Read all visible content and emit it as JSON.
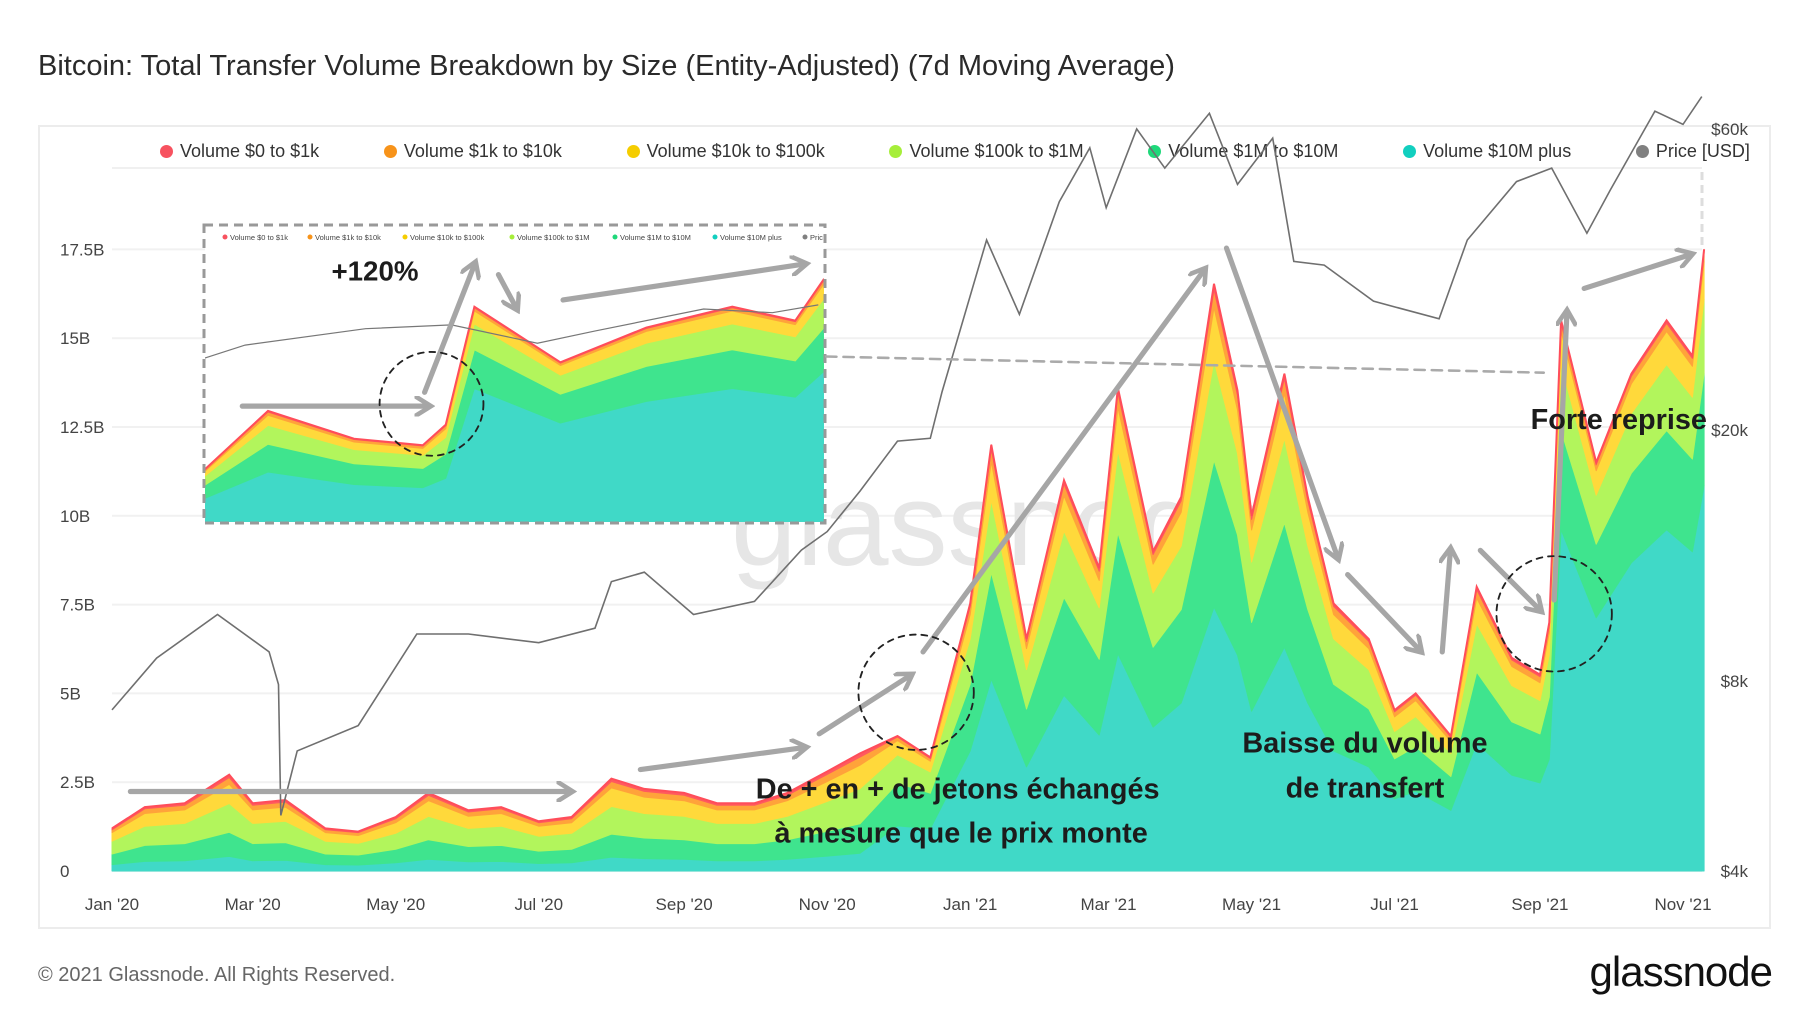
{
  "title": "Bitcoin: Total Transfer Volume Breakdown by Size (Entity-Adjusted) (7d Moving Average)",
  "footer": "© 2021 Glassnode. All Rights Reserved.",
  "logo": "glassnode",
  "watermark": "glassnode",
  "legend": [
    {
      "label": "Volume $0 to $1k",
      "color": "#f7525f"
    },
    {
      "label": "Volume $1k to $10k",
      "color": "#f7931a"
    },
    {
      "label": "Volume $10k to $100k",
      "color": "#f5cd00"
    },
    {
      "label": "Volume $100k to $1M",
      "color": "#a6ee3a"
    },
    {
      "label": "Volume $1M to $10M",
      "color": "#1fd87a"
    },
    {
      "label": "Volume $10M plus",
      "color": "#12cfbf"
    },
    {
      "label": "Price [USD]",
      "color": "#808080"
    }
  ],
  "inset_legend": [
    "Volume $0 to $1k",
    "Volume $1k to $10k",
    "Volume $10k to $100k",
    "Volume $100k to $1M",
    "Volume $1M to $10M",
    "Volume $10M plus",
    "Pric"
  ],
  "annotations": {
    "inset_pct": "+120%",
    "rise_line1": "De + en + de jetons échangés",
    "rise_line2": "à mesure que le prix monte",
    "drop_line1": "Baisse du volume",
    "drop_line2": "de transfert",
    "recovery": "Forte reprise"
  },
  "chart_data": {
    "type": "area",
    "stacked": true,
    "title": "Bitcoin: Total Transfer Volume Breakdown by Size (Entity-Adjusted) (7d Moving Average)",
    "x_ticks": [
      "Jan '20",
      "Mar '20",
      "May '20",
      "Jul '20",
      "Sep '20",
      "Nov '20",
      "Jan '21",
      "Mar '21",
      "May '21",
      "Jul '21",
      "Sep '21",
      "Nov '21"
    ],
    "x_tick_dates": [
      "2020-01-01",
      "2020-03-01",
      "2020-05-01",
      "2020-07-01",
      "2020-09-01",
      "2020-11-01",
      "2021-01-01",
      "2021-03-01",
      "2021-05-01",
      "2021-07-01",
      "2021-09-01",
      "2021-11-01"
    ],
    "y_left": {
      "ticks": [
        "0",
        "2.5B",
        "5B",
        "7.5B",
        "10B",
        "12.5B",
        "15B",
        "17.5B"
      ],
      "tick_values": [
        0,
        2.5,
        5,
        7.5,
        10,
        12.5,
        15,
        17.5
      ],
      "unit": "billion USD",
      "range": [
        0,
        18
      ]
    },
    "y_right": {
      "scale": "log",
      "ticks": [
        "$4k",
        "$8k",
        "$20k",
        "$60k"
      ],
      "tick_values": [
        4000,
        8000,
        20000,
        60000
      ]
    },
    "grid": true,
    "legend_position": "top",
    "dates": [
      "2020-01-01",
      "2020-01-15",
      "2020-02-01",
      "2020-02-20",
      "2020-03-01",
      "2020-03-15",
      "2020-04-01",
      "2020-04-15",
      "2020-05-01",
      "2020-05-15",
      "2020-06-01",
      "2020-06-15",
      "2020-07-01",
      "2020-07-15",
      "2020-08-01",
      "2020-08-15",
      "2020-09-01",
      "2020-09-15",
      "2020-10-01",
      "2020-10-15",
      "2020-11-01",
      "2020-11-15",
      "2020-12-01",
      "2020-12-15",
      "2021-01-01",
      "2021-01-10",
      "2021-01-25",
      "2021-02-10",
      "2021-02-25",
      "2021-03-05",
      "2021-03-20",
      "2021-04-01",
      "2021-04-15",
      "2021-04-25",
      "2021-05-01",
      "2021-05-15",
      "2021-05-25",
      "2021-06-05",
      "2021-06-20",
      "2021-07-01",
      "2021-07-10",
      "2021-07-25",
      "2021-08-05",
      "2021-08-20",
      "2021-09-01",
      "2021-09-05",
      "2021-09-10",
      "2021-09-25",
      "2021-10-10",
      "2021-10-25",
      "2021-11-05",
      "2021-11-10"
    ],
    "series": [
      {
        "name": "Volume $10M plus",
        "color": "#40d9c7",
        "values": [
          0.18,
          0.27,
          0.29,
          0.41,
          0.29,
          0.3,
          0.18,
          0.17,
          0.23,
          0.33,
          0.26,
          0.27,
          0.21,
          0.23,
          0.39,
          0.35,
          0.33,
          0.29,
          0.29,
          0.33,
          0.42,
          0.5,
          1.27,
          1.19,
          3.38,
          5.4,
          2.93,
          4.95,
          3.83,
          6.12,
          4.05,
          4.73,
          7.43,
          6.08,
          4.5,
          6.3,
          4.73,
          3.38,
          2.93,
          2.03,
          2.25,
          1.71,
          3.6,
          2.7,
          2.48,
          3.15,
          9.61,
          7.13,
          8.68,
          9.61,
          8.99,
          10.85
        ]
      },
      {
        "name": "Volume $1M to $10M",
        "color": "#3fe48e",
        "values": [
          0.3,
          0.45,
          0.48,
          0.68,
          0.48,
          0.5,
          0.3,
          0.28,
          0.38,
          0.55,
          0.43,
          0.45,
          0.35,
          0.38,
          0.65,
          0.58,
          0.55,
          0.48,
          0.48,
          0.55,
          0.7,
          0.83,
          1.2,
          1.0,
          1.88,
          3.0,
          1.63,
          2.75,
          2.13,
          3.4,
          2.25,
          2.63,
          4.13,
          3.38,
          2.5,
          3.5,
          2.63,
          1.88,
          1.63,
          1.13,
          1.25,
          0.95,
          2.0,
          1.5,
          1.38,
          1.75,
          2.79,
          2.07,
          2.52,
          2.79,
          2.61,
          3.15
        ]
      },
      {
        "name": "Volume $100k to $1M",
        "color": "#b2f55c",
        "values": [
          0.36,
          0.54,
          0.57,
          0.81,
          0.57,
          0.6,
          0.36,
          0.33,
          0.45,
          0.66,
          0.51,
          0.54,
          0.42,
          0.45,
          0.78,
          0.69,
          0.66,
          0.57,
          0.57,
          0.66,
          0.84,
          0.99,
          0.8,
          0.6,
          1.28,
          2.04,
          1.11,
          1.87,
          1.45,
          2.31,
          1.53,
          1.79,
          2.81,
          2.3,
          1.7,
          2.38,
          1.79,
          1.28,
          1.11,
          0.77,
          0.85,
          0.65,
          1.36,
          1.02,
          0.94,
          1.19,
          1.86,
          1.38,
          1.68,
          1.86,
          1.74,
          2.1
        ]
      },
      {
        "name": "Volume $10k to $100k",
        "color": "#ffd93b",
        "values": [
          0.24,
          0.36,
          0.38,
          0.54,
          0.38,
          0.4,
          0.24,
          0.22,
          0.3,
          0.44,
          0.34,
          0.36,
          0.28,
          0.3,
          0.52,
          0.46,
          0.44,
          0.38,
          0.38,
          0.44,
          0.56,
          0.66,
          0.4,
          0.3,
          0.68,
          1.08,
          0.59,
          0.99,
          0.77,
          1.22,
          0.81,
          0.95,
          1.49,
          1.22,
          0.9,
          1.26,
          0.95,
          0.68,
          0.59,
          0.41,
          0.45,
          0.34,
          0.72,
          0.54,
          0.5,
          0.63,
          0.93,
          0.69,
          0.84,
          0.93,
          0.87,
          1.05
        ]
      },
      {
        "name": "Volume $1k to $10k",
        "color": "#ffa33a",
        "values": [
          0.08,
          0.13,
          0.13,
          0.19,
          0.13,
          0.14,
          0.08,
          0.08,
          0.11,
          0.15,
          0.12,
          0.13,
          0.1,
          0.11,
          0.18,
          0.16,
          0.15,
          0.13,
          0.13,
          0.15,
          0.2,
          0.23,
          0.1,
          0.08,
          0.23,
          0.36,
          0.2,
          0.33,
          0.26,
          0.41,
          0.27,
          0.32,
          0.5,
          0.41,
          0.3,
          0.42,
          0.32,
          0.23,
          0.2,
          0.14,
          0.15,
          0.11,
          0.24,
          0.18,
          0.17,
          0.21,
          0.23,
          0.17,
          0.21,
          0.23,
          0.22,
          0.26
        ]
      },
      {
        "name": "Volume $0 to $1k",
        "color": "#ff5a5f",
        "values": [
          0.04,
          0.05,
          0.06,
          0.08,
          0.06,
          0.06,
          0.04,
          0.03,
          0.05,
          0.07,
          0.05,
          0.05,
          0.04,
          0.05,
          0.08,
          0.07,
          0.07,
          0.06,
          0.06,
          0.07,
          0.08,
          0.1,
          0.03,
          0.03,
          0.08,
          0.12,
          0.07,
          0.11,
          0.09,
          0.14,
          0.09,
          0.11,
          0.17,
          0.14,
          0.1,
          0.14,
          0.11,
          0.08,
          0.07,
          0.05,
          0.05,
          0.04,
          0.08,
          0.06,
          0.06,
          0.07,
          0.08,
          0.06,
          0.07,
          0.08,
          0.07,
          0.09
        ]
      }
    ],
    "price": {
      "name": "Price [USD]",
      "color": "#6f6f6f",
      "dates": [
        "2020-01-01",
        "2020-01-20",
        "2020-02-15",
        "2020-03-08",
        "2020-03-12",
        "2020-03-13",
        "2020-03-20",
        "2020-04-15",
        "2020-05-10",
        "2020-06-01",
        "2020-07-01",
        "2020-07-25",
        "2020-08-01",
        "2020-08-15",
        "2020-09-05",
        "2020-10-01",
        "2020-10-21",
        "2020-11-01",
        "2020-11-15",
        "2020-12-01",
        "2020-12-15",
        "2020-12-20",
        "2021-01-08",
        "2021-01-22",
        "2021-02-08",
        "2021-02-21",
        "2021-02-28",
        "2021-03-13",
        "2021-03-25",
        "2021-04-13",
        "2021-04-25",
        "2021-05-10",
        "2021-05-19",
        "2021-06-01",
        "2021-06-22",
        "2021-07-20",
        "2021-08-01",
        "2021-08-22",
        "2021-09-06",
        "2021-09-21",
        "2021-10-01",
        "2021-10-20",
        "2021-11-01",
        "2021-11-09"
      ],
      "values": [
        7200,
        8700,
        10200,
        8900,
        7900,
        4900,
        6200,
        6800,
        9500,
        9500,
        9200,
        9700,
        11500,
        11900,
        10200,
        10700,
        12900,
        13800,
        16000,
        19200,
        19400,
        23000,
        40000,
        30500,
        46000,
        56000,
        45000,
        60000,
        52000,
        63500,
        49000,
        58000,
        37000,
        36500,
        32000,
        30000,
        40000,
        49500,
        52000,
        41000,
        48000,
        64000,
        61000,
        67500
      ]
    }
  }
}
